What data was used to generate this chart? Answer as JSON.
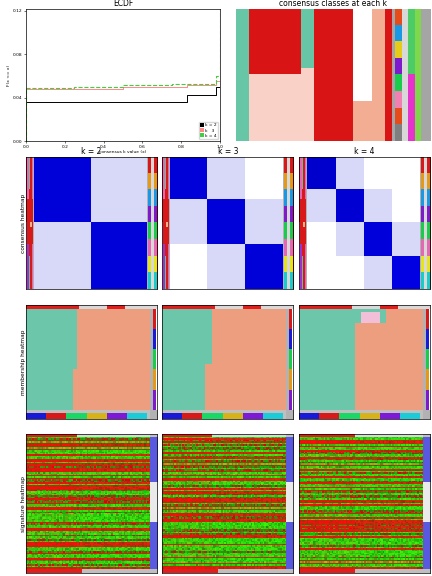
{
  "title_ecdf": "ECDF",
  "title_consensus_classes": "consensus classes at each k",
  "ecdf_xlabel": "consensus k value (x)",
  "ecdf_ylabel": "F(x <= x)",
  "k_labels": [
    "k = 2",
    "k = 3",
    "k = 4"
  ],
  "row_labels": [
    "consensus heatmap",
    "membership heatmap",
    "signature heatmap"
  ],
  "fig_width": 4.32,
  "fig_height": 5.76
}
